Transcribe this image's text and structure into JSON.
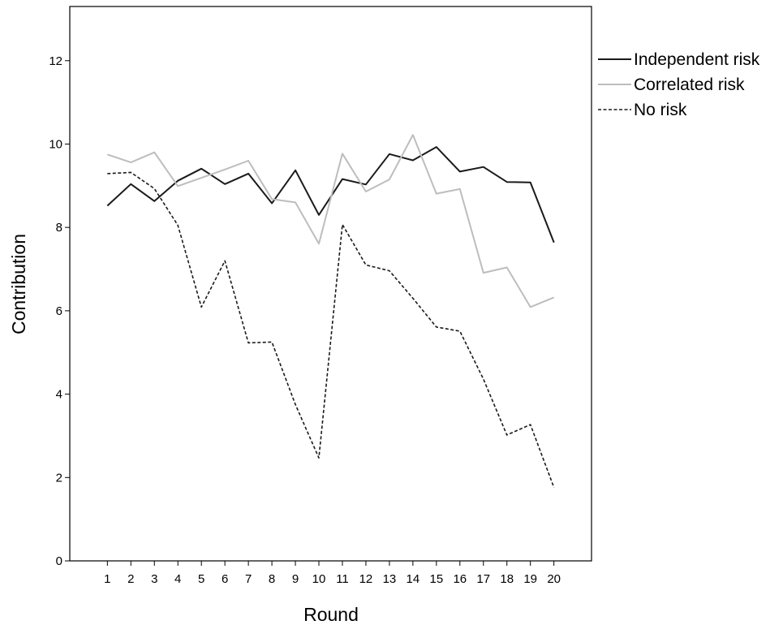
{
  "chart_data": {
    "type": "line",
    "title": "",
    "xlabel": "Round",
    "ylabel": "Contribution",
    "x": [
      1,
      2,
      3,
      4,
      5,
      6,
      7,
      8,
      9,
      10,
      11,
      12,
      13,
      14,
      15,
      16,
      17,
      18,
      19,
      20
    ],
    "y_ticks": [
      0,
      2,
      4,
      6,
      8,
      10,
      12
    ],
    "ylim": [
      0,
      13.3
    ],
    "xlim": [
      -0.6,
      21.6
    ],
    "grid": false,
    "legend_position": "right-top",
    "series": [
      {
        "name": "Independent risk",
        "color": "#1a1a1a",
        "style": "solid",
        "values": [
          8.52,
          9.04,
          8.63,
          9.12,
          9.41,
          9.04,
          9.29,
          8.58,
          9.37,
          8.3,
          9.16,
          9.03,
          9.76,
          9.61,
          9.93,
          9.34,
          9.45,
          9.09,
          9.08,
          7.64
        ]
      },
      {
        "name": "Correlated risk",
        "color": "#bdbdbd",
        "style": "solid",
        "values": [
          9.75,
          9.56,
          9.8,
          8.99,
          9.19,
          9.39,
          9.6,
          8.68,
          8.6,
          7.61,
          9.77,
          8.86,
          9.15,
          10.22,
          8.81,
          8.92,
          6.91,
          7.04,
          6.09,
          6.32
        ]
      },
      {
        "name": "No risk",
        "color": "#1a1a1a",
        "style": "dashed",
        "values": [
          9.29,
          9.32,
          8.93,
          8.05,
          6.09,
          7.2,
          5.23,
          5.25,
          3.75,
          2.47,
          8.07,
          7.1,
          6.96,
          6.3,
          5.61,
          5.51,
          4.36,
          3.02,
          3.27,
          1.76
        ]
      }
    ]
  }
}
